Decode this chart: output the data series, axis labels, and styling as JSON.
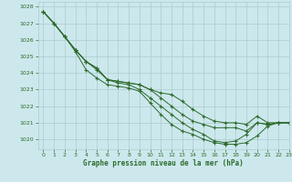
{
  "title": "Graphe pression niveau de la mer (hPa)",
  "bg_color": "#cce8ec",
  "grid_color": "#aaccd0",
  "line_color": "#2d6a2d",
  "xlim": [
    -0.5,
    23
  ],
  "ylim": [
    1019.4,
    1028.3
  ],
  "yticks": [
    1020,
    1021,
    1022,
    1023,
    1024,
    1025,
    1026,
    1027,
    1028
  ],
  "xticks": [
    0,
    1,
    2,
    3,
    4,
    5,
    6,
    7,
    8,
    9,
    10,
    11,
    12,
    13,
    14,
    15,
    16,
    17,
    18,
    19,
    20,
    21,
    22,
    23
  ],
  "series": [
    [
      1027.7,
      1027.0,
      1026.2,
      1025.4,
      1024.7,
      1024.3,
      1023.6,
      1023.5,
      1023.4,
      1023.3,
      1023.0,
      1022.8,
      1022.7,
      1022.3,
      1021.8,
      1021.4,
      1021.1,
      1021.0,
      1021.0,
      1020.9,
      1021.4,
      1021.0,
      1021.0,
      1021.0
    ],
    [
      1027.7,
      1027.0,
      1026.2,
      1025.4,
      1024.7,
      1024.3,
      1023.6,
      1023.5,
      1023.4,
      1023.3,
      1023.0,
      1022.5,
      1022.0,
      1021.5,
      1021.1,
      1020.9,
      1020.7,
      1020.7,
      1020.7,
      1020.5,
      1021.0,
      1020.9,
      1021.0,
      1021.0
    ],
    [
      1027.7,
      1027.0,
      1026.2,
      1025.4,
      1024.7,
      1024.2,
      1023.6,
      1023.4,
      1023.3,
      1023.0,
      1022.5,
      1022.0,
      1021.5,
      1021.0,
      1020.6,
      1020.3,
      1019.9,
      1019.8,
      1019.9,
      1020.3,
      1021.0,
      1020.9,
      1021.0,
      1021.0
    ],
    [
      1027.7,
      1027.0,
      1026.2,
      1025.3,
      1024.2,
      1023.7,
      1023.3,
      1023.2,
      1023.1,
      1022.9,
      1022.2,
      1021.5,
      1020.9,
      1020.5,
      1020.3,
      1020.0,
      1019.8,
      1019.7,
      1019.7,
      1019.8,
      1020.2,
      1020.8,
      1021.0,
      1021.0
    ]
  ]
}
